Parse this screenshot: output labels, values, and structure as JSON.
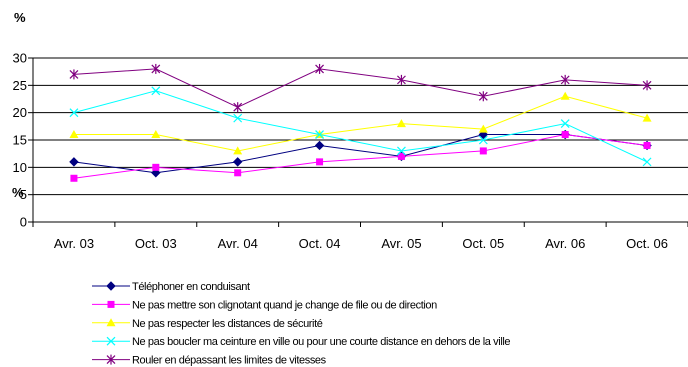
{
  "chart_data": {
    "type": "line",
    "unit_label_top": "%",
    "unit_label_axis": "%",
    "categories": [
      "Avr. 03",
      "Oct. 03",
      "Avr. 04",
      "Oct. 04",
      "Avr. 05",
      "Oct. 05",
      "Avr. 06",
      "Oct. 06"
    ],
    "ylim": [
      0,
      30
    ],
    "yticks": [
      0,
      5,
      10,
      15,
      20,
      25,
      30
    ],
    "grid": "horizontal",
    "legend_position": "bottom-left",
    "series": [
      {
        "name": "Téléphoner en conduisant",
        "color": "#000080",
        "marker": "diamond",
        "values": [
          11,
          9,
          11,
          14,
          12,
          16,
          16,
          14
        ]
      },
      {
        "name": "Ne pas mettre son clignotant quand je change de file ou de direction",
        "color": "#ff00ff",
        "marker": "square",
        "values": [
          8,
          10,
          9,
          11,
          12,
          13,
          16,
          14
        ]
      },
      {
        "name": "Ne pas respecter les distances de sécurité",
        "color": "#ffff00",
        "marker": "triangle",
        "values": [
          16,
          16,
          13,
          16,
          18,
          17,
          23,
          19
        ]
      },
      {
        "name": "Ne pas boucler ma ceinture en ville ou pour une courte distance en dehors de la ville",
        "color": "#00ffff",
        "marker": "x",
        "values": [
          20,
          24,
          19,
          16,
          13,
          15,
          18,
          11
        ]
      },
      {
        "name": "Rouler en dépassant les limites de vitesses",
        "color": "#800080",
        "marker": "star",
        "values": [
          27,
          28,
          21,
          28,
          26,
          23,
          26,
          25
        ]
      }
    ]
  }
}
